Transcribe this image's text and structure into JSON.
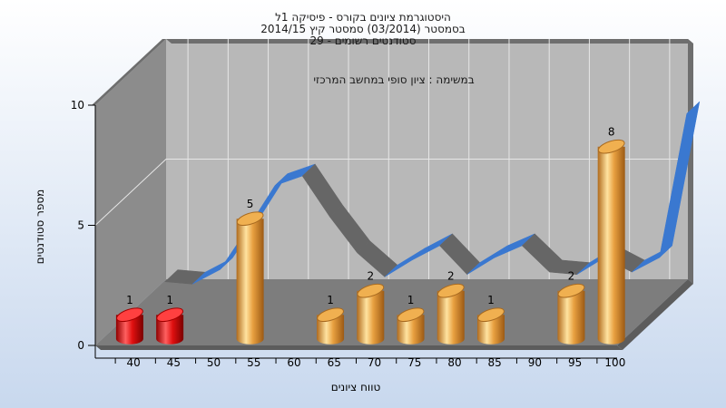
{
  "chart_data": {
    "type": "bar",
    "title_lines": [
      "היסטוגרמת ציונים בקורס - פיסיקה 1ל",
      "בסמסטר  (03/2014)  סמסטר קיץ 2014/15",
      "סטודנטים רשומים - 29"
    ],
    "subtitle": "במשימה : ציון סופי במחשב המרכזי",
    "xlabel": "טווח ציונים",
    "ylabel": "מספר סטודנטים",
    "ylim": [
      0,
      10
    ],
    "yticks": [
      "10",
      "5",
      "0"
    ],
    "categories": [
      "40",
      "45",
      "50",
      "55",
      "60",
      "65",
      "70",
      "75",
      "80",
      "85",
      "90",
      "95",
      "100"
    ],
    "bars": [
      {
        "x": 40,
        "value": 1,
        "label": "1",
        "color": "red"
      },
      {
        "x": 45,
        "value": 1,
        "label": "1",
        "color": "red"
      },
      {
        "x": 55,
        "value": 5,
        "label": "5",
        "color": "gold"
      },
      {
        "x": 65,
        "value": 1,
        "label": "1",
        "color": "gold"
      },
      {
        "x": 70,
        "value": 2,
        "label": "2",
        "color": "gold"
      },
      {
        "x": 75,
        "value": 1,
        "label": "1",
        "color": "gold"
      },
      {
        "x": 80,
        "value": 2,
        "label": "2",
        "color": "gold"
      },
      {
        "x": 85,
        "value": 1,
        "label": "1",
        "color": "gold"
      },
      {
        "x": 95,
        "value": 2,
        "label": "2",
        "color": "gold"
      },
      {
        "x": 100,
        "value": 8,
        "label": "8",
        "color": "gold"
      }
    ],
    "ribbon_values": [
      1.0,
      0.9,
      1.5,
      3.2,
      5.0,
      5.4,
      3.7,
      2.2,
      1.2,
      1.9,
      2.5,
      1.3,
      2.0,
      2.5,
      1.4,
      1.3,
      2.0,
      1.4,
      2.0,
      8.0
    ],
    "colors": {
      "red": "#e01010",
      "gold": "#e8a040",
      "ribbon_blue": "#3a78d0",
      "ribbon_gray": "#666666",
      "background": "#dbe6f5",
      "back_wall": "#b8b8b8",
      "side_wall": "#8c8c8c",
      "floor": "#7d7d7d"
    }
  }
}
